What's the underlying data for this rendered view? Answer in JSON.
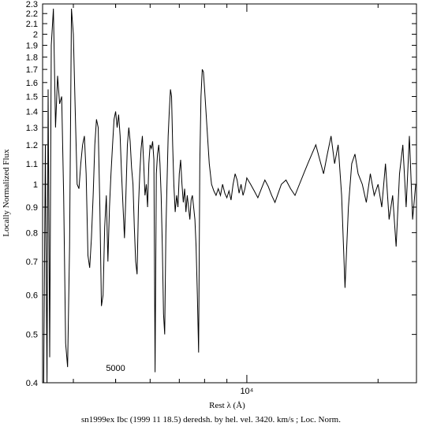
{
  "chart_data": {
    "type": "line",
    "title": "",
    "xlabel": "Rest λ (Å)",
    "ylabel": "Locally Normalized Flux",
    "caption": "sn1999ex Ibc (1999 11 18.5) deredsh. by hel. vel.  3420. km/s ;  Loc. Norm.",
    "y_scale": "log",
    "x_scale": "log",
    "ylim": [
      0.4,
      2.3
    ],
    "xlim": [
      3400,
      24500
    ],
    "y_ticks": [
      {
        "value": 0.4,
        "label": "0.4"
      },
      {
        "value": 0.5,
        "label": "0.5"
      },
      {
        "value": 0.6,
        "label": "0.6"
      },
      {
        "value": 0.7,
        "label": "0.7"
      },
      {
        "value": 0.8,
        "label": "0.8"
      },
      {
        "value": 0.9,
        "label": "0.9"
      },
      {
        "value": 1.0,
        "label": "1"
      },
      {
        "value": 1.1,
        "label": "1.1"
      },
      {
        "value": 1.2,
        "label": "1.2"
      },
      {
        "value": 1.3,
        "label": "1.3"
      },
      {
        "value": 1.4,
        "label": "1.4"
      },
      {
        "value": 1.5,
        "label": "1.5"
      },
      {
        "value": 1.6,
        "label": "1.6"
      },
      {
        "value": 1.7,
        "label": "1.7"
      },
      {
        "value": 1.8,
        "label": "1.8"
      },
      {
        "value": 1.9,
        "label": "1.9"
      },
      {
        "value": 2.0,
        "label": "2"
      },
      {
        "value": 2.1,
        "label": "2.1"
      },
      {
        "value": 2.2,
        "label": "2.2"
      },
      {
        "value": 2.3,
        "label": "2.3"
      }
    ],
    "x_labels": [
      {
        "value": 5000,
        "label": "5000",
        "position": "inside-bottom"
      },
      {
        "value": 10000,
        "label": "10⁴",
        "position": "below-axis"
      }
    ],
    "series": [
      {
        "x": [
          3420,
          3450,
          3480,
          3500,
          3530,
          3560,
          3600,
          3640,
          3680,
          3720,
          3760,
          3800,
          3840,
          3880,
          3920,
          3960,
          4000,
          4040,
          4080,
          4120,
          4160,
          4200,
          4240,
          4280,
          4320,
          4360,
          4400,
          4440,
          4480,
          4520,
          4560,
          4600,
          4640,
          4680,
          4720,
          4760,
          4800,
          4840,
          4880,
          4920,
          4960,
          5000,
          5040,
          5080,
          5120,
          5160,
          5200,
          5240,
          5280,
          5320,
          5360,
          5400,
          5440,
          5480,
          5520,
          5560,
          5600,
          5640,
          5680,
          5720,
          5760,
          5800,
          5840,
          5880,
          5920,
          5960,
          6000,
          6040,
          6080,
          6120,
          6160,
          6200,
          6240,
          6280,
          6320,
          6360,
          6400,
          6440,
          6480,
          6520,
          6560,
          6600,
          6640,
          6680,
          6720,
          6760,
          6800,
          6850,
          6900,
          6950,
          7000,
          7050,
          7100,
          7150,
          7200,
          7250,
          7300,
          7350,
          7400,
          7450,
          7500,
          7550,
          7600,
          7650,
          7700,
          7750,
          7800,
          7850,
          7900,
          7950,
          8000,
          8100,
          8200,
          8300,
          8400,
          8500,
          8600,
          8700,
          8800,
          8900,
          9000,
          9100,
          9200,
          9300,
          9400,
          9500,
          9600,
          9700,
          9800,
          9900,
          10000,
          10200,
          10400,
          10600,
          10800,
          11000,
          11200,
          11400,
          11600,
          11800,
          12000,
          12300,
          12600,
          12900,
          13200,
          13500,
          13800,
          14100,
          14400,
          14700,
          15000,
          15300,
          15600,
          15900,
          16200,
          16500,
          16800,
          17100,
          17400,
          17700,
          18000,
          18400,
          18800,
          19200,
          19600,
          20000,
          20400,
          20800,
          21200,
          21600,
          22000,
          22400,
          22800,
          23200,
          23600,
          24000,
          24400
        ],
        "y": [
          0.4,
          1.2,
          0.4,
          1.55,
          0.45,
          1.9,
          2.25,
          1.3,
          1.65,
          1.45,
          1.5,
          0.95,
          0.48,
          0.43,
          0.75,
          2.25,
          2.0,
          1.4,
          1.0,
          0.98,
          1.1,
          1.2,
          1.25,
          1.05,
          0.72,
          0.68,
          0.78,
          0.95,
          1.2,
          1.35,
          1.3,
          0.9,
          0.57,
          0.6,
          0.82,
          0.95,
          0.7,
          0.9,
          1.05,
          1.2,
          1.35,
          1.4,
          1.3,
          1.38,
          1.25,
          1.05,
          0.9,
          0.78,
          0.95,
          1.2,
          1.3,
          1.22,
          1.08,
          1.0,
          0.82,
          0.7,
          0.66,
          0.9,
          1.05,
          1.18,
          1.25,
          1.1,
          0.95,
          1.0,
          0.9,
          1.1,
          1.2,
          1.18,
          1.22,
          1.12,
          0.42,
          1.05,
          1.15,
          1.2,
          1.1,
          0.95,
          0.75,
          0.55,
          0.5,
          0.8,
          1.0,
          1.25,
          1.4,
          1.55,
          1.5,
          1.2,
          1.0,
          0.88,
          0.95,
          0.9,
          1.05,
          1.12,
          1.0,
          0.92,
          0.98,
          0.88,
          0.95,
          0.9,
          0.85,
          0.93,
          0.95,
          0.9,
          0.85,
          0.75,
          0.6,
          0.46,
          1.1,
          1.5,
          1.7,
          1.68,
          1.55,
          1.3,
          1.1,
          1.0,
          0.97,
          0.95,
          0.98,
          0.95,
          1.0,
          0.96,
          0.94,
          0.97,
          0.93,
          1.0,
          1.05,
          1.02,
          0.96,
          1.0,
          0.95,
          0.98,
          1.03,
          1.0,
          0.97,
          0.94,
          0.98,
          1.02,
          0.99,
          0.95,
          0.92,
          0.96,
          1.0,
          1.02,
          0.98,
          0.95,
          1.0,
          1.05,
          1.1,
          1.15,
          1.2,
          1.12,
          1.05,
          1.15,
          1.25,
          1.1,
          1.2,
          0.95,
          0.62,
          0.9,
          1.1,
          1.15,
          1.05,
          1.0,
          0.92,
          1.05,
          0.95,
          1.0,
          0.9,
          1.1,
          0.85,
          0.95,
          0.75,
          1.05,
          1.2,
          0.9,
          1.25,
          0.85,
          1.0
        ],
        "name": ""
      }
    ],
    "grid": false,
    "frame": "box"
  }
}
